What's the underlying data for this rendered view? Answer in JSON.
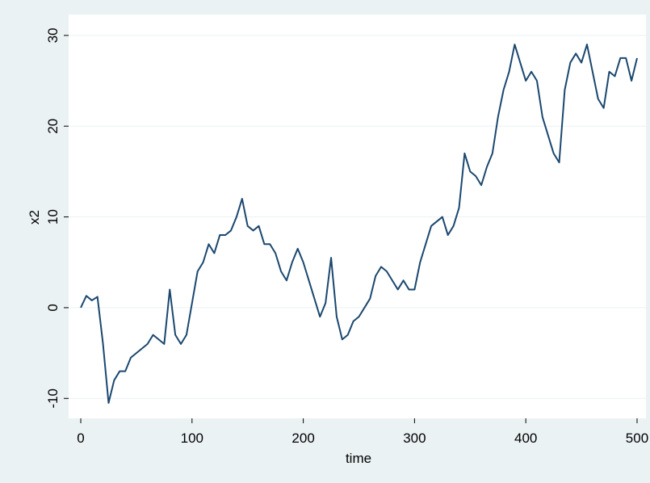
{
  "chart_data": {
    "type": "line",
    "x_label": "time",
    "y_label": "x2",
    "x": [
      0,
      5,
      10,
      15,
      20,
      25,
      30,
      35,
      40,
      45,
      50,
      55,
      60,
      65,
      70,
      75,
      80,
      85,
      90,
      95,
      100,
      105,
      110,
      115,
      120,
      125,
      130,
      135,
      140,
      145,
      150,
      155,
      160,
      165,
      170,
      175,
      180,
      185,
      190,
      195,
      200,
      205,
      210,
      215,
      220,
      225,
      230,
      235,
      240,
      245,
      250,
      255,
      260,
      265,
      270,
      275,
      280,
      285,
      290,
      295,
      300,
      305,
      310,
      315,
      320,
      325,
      330,
      335,
      340,
      345,
      350,
      355,
      360,
      365,
      370,
      375,
      380,
      385,
      390,
      395,
      400,
      405,
      410,
      415,
      420,
      425,
      430,
      435,
      440,
      445,
      450,
      455,
      460,
      465,
      470,
      475,
      480,
      485,
      490,
      495,
      500
    ],
    "series": [
      {
        "name": "x2",
        "color": "#1a476f",
        "values": [
          0,
          1.3,
          0.8,
          1.2,
          -4,
          -10.5,
          -8,
          -7,
          -7,
          -5.5,
          -5,
          -4.5,
          -4,
          -3,
          -3.5,
          -4,
          2,
          -3,
          -4,
          -3,
          0.5,
          4,
          5,
          7,
          6,
          8,
          8,
          8.5,
          10,
          12,
          9,
          8.5,
          9,
          7,
          7,
          6,
          4,
          3,
          5,
          6.5,
          5,
          3,
          1,
          -1,
          0.5,
          5.5,
          -1,
          -3.5,
          -3,
          -1.5,
          -1,
          0,
          1,
          3.5,
          4.5,
          4,
          3,
          2,
          3,
          2,
          2,
          5,
          7,
          9,
          9.5,
          10,
          8,
          9,
          11,
          17,
          15,
          14.5,
          13.5,
          15.5,
          17,
          21,
          24,
          26,
          29,
          27,
          25,
          26,
          25,
          21,
          19,
          17,
          16,
          24,
          27,
          28,
          27,
          29,
          26,
          23,
          22,
          26,
          25.5,
          27.5,
          27.5,
          25,
          27.5
        ]
      }
    ],
    "xlim": [
      -10.9,
      508
    ],
    "xticks": [
      0,
      100,
      200,
      300,
      400,
      500
    ],
    "ylim": [
      -12.2,
      32.3
    ],
    "yticks": [
      -10,
      0,
      10,
      20,
      30
    ],
    "grid": true
  }
}
